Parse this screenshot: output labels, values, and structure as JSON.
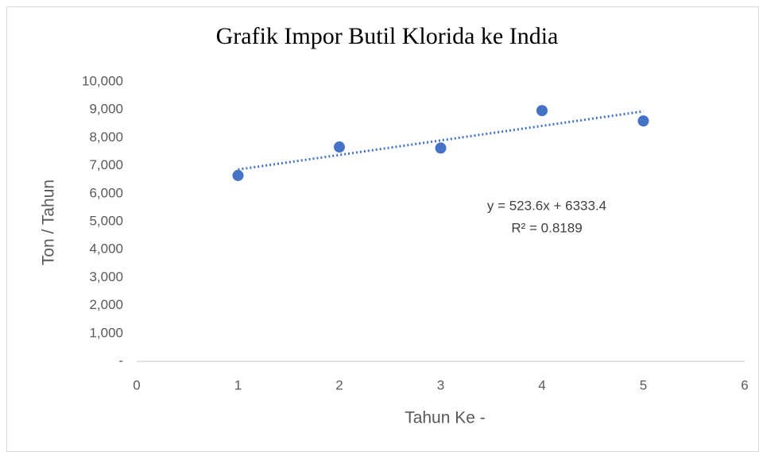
{
  "chart_data": {
    "type": "scatter",
    "title": "Grafik Impor Butil Klorida ke India",
    "x_label": "Tahun Ke -",
    "y_label": "Ton / Tahun",
    "annotations": [
      "y = 523.6x + 6333.4",
      "R² = 0.8189"
    ],
    "x": [
      1,
      2,
      3,
      4,
      5
    ],
    "values": [
      6650,
      7670,
      7630,
      8970,
      8600
    ],
    "color": "#4472c4",
    "trendline": "linear",
    "xlim": [
      0,
      6
    ],
    "xticks": [
      0,
      1,
      2,
      3,
      4,
      5,
      6
    ],
    "ylim": [
      0,
      10000
    ],
    "yticks": [
      {
        "value": 0,
        "label": "-"
      },
      {
        "value": 1000,
        "label": "1,000"
      },
      {
        "value": 2000,
        "label": "2,000"
      },
      {
        "value": 3000,
        "label": "3,000"
      },
      {
        "value": 4000,
        "label": "4,000"
      },
      {
        "value": 5000,
        "label": "5,000"
      },
      {
        "value": 6000,
        "label": "6,000"
      },
      {
        "value": 7000,
        "label": "7,000"
      },
      {
        "value": 8000,
        "label": "8,000"
      },
      {
        "value": 9000,
        "label": "9,000"
      },
      {
        "value": 10000,
        "label": "10,000"
      }
    ],
    "grid": false
  }
}
